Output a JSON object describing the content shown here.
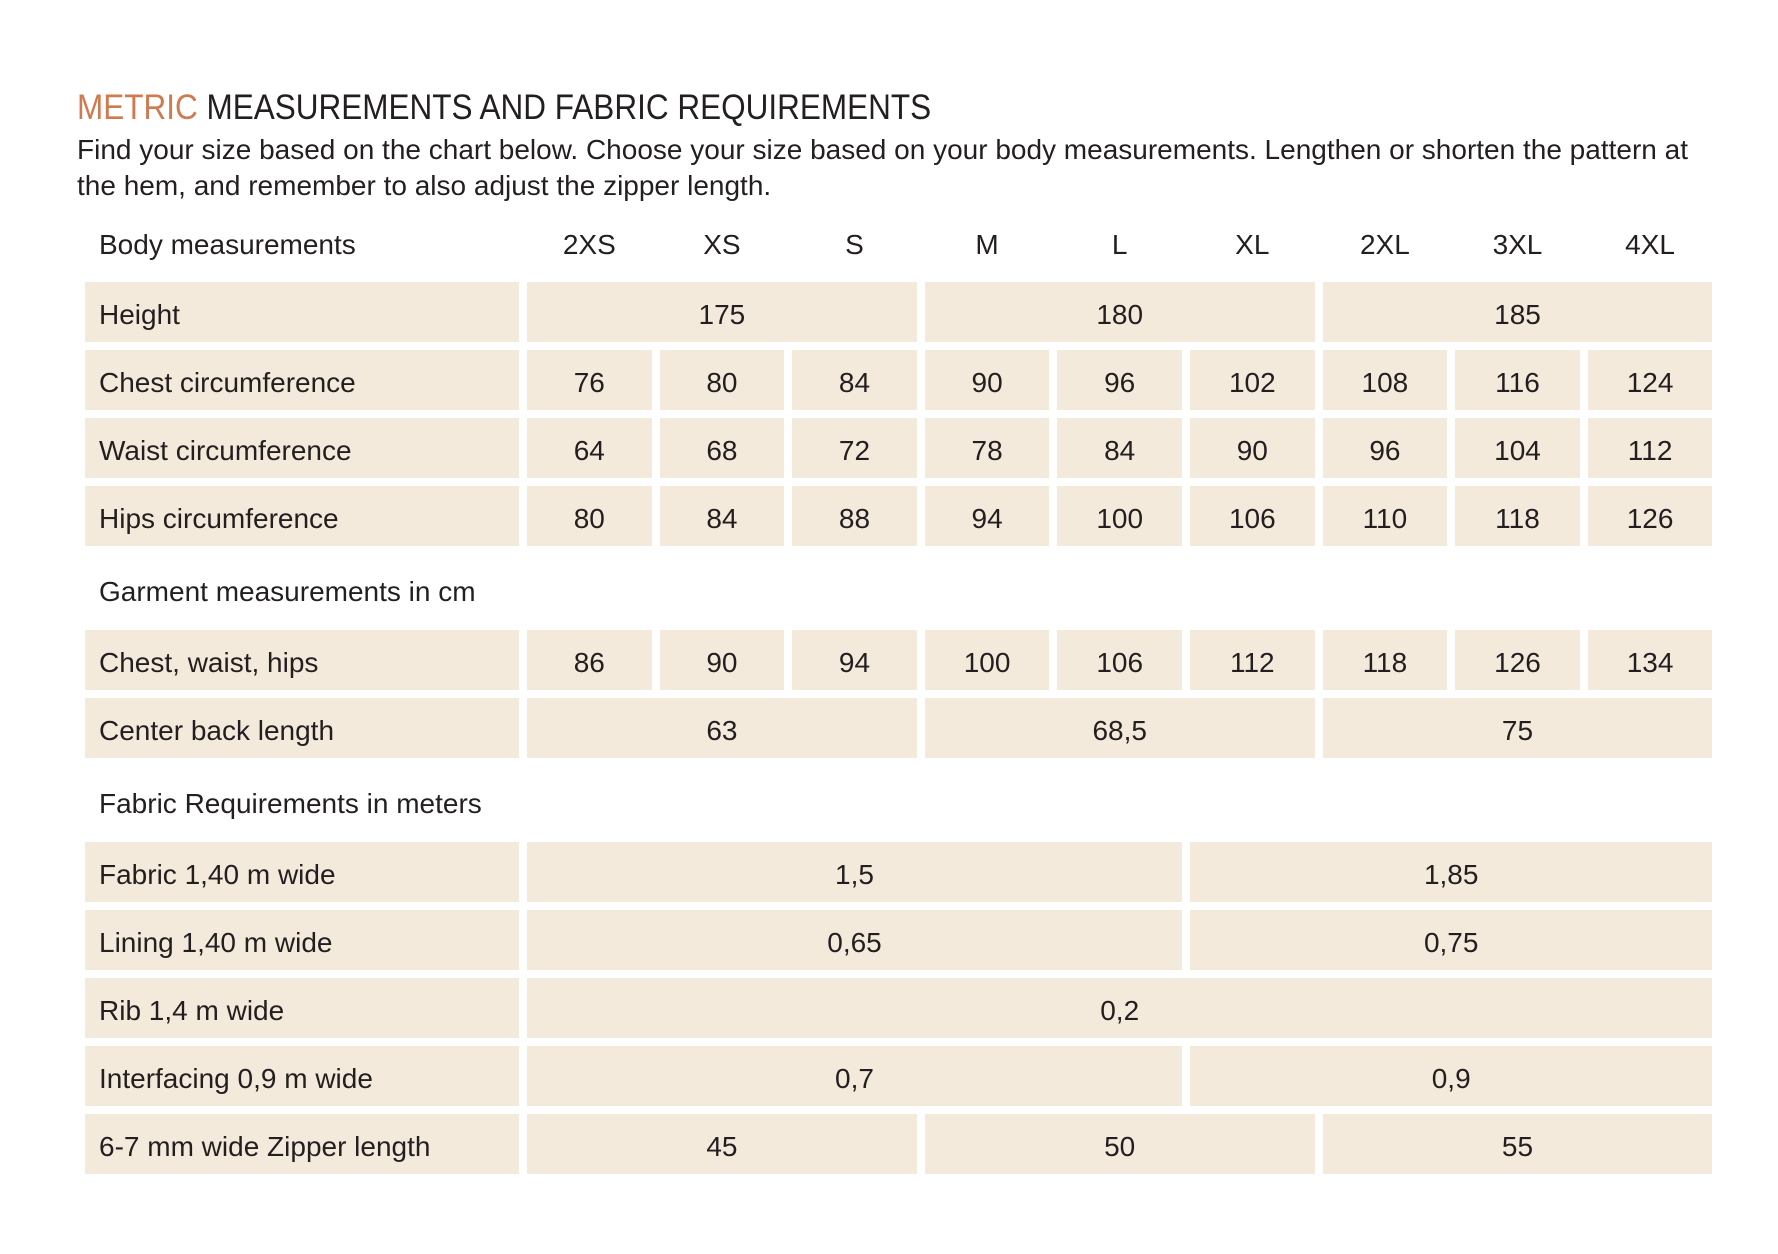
{
  "title": {
    "accent": "METRIC",
    "rest": " MEASUREMENTS AND FABRIC REQUIREMENTS"
  },
  "intro": "Find your size based on the chart below. Choose your size based on your body measurements.  Lengthen or shorten the pattern at the hem, and remember to also adjust the zipper length.",
  "sizes": [
    "2XS",
    "XS",
    "S",
    "M",
    "L",
    "XL",
    "2XL",
    "3XL",
    "4XL"
  ],
  "sections": [
    {
      "heading": "Body measurements",
      "header_row": true,
      "rows": [
        {
          "label": "Height",
          "cells": [
            {
              "value": "175",
              "span": 3
            },
            {
              "value": "180",
              "span": 3
            },
            {
              "value": "185",
              "span": 3
            }
          ]
        },
        {
          "label": "Chest circumference",
          "cells": [
            {
              "value": "76",
              "span": 1
            },
            {
              "value": "80",
              "span": 1
            },
            {
              "value": "84",
              "span": 1
            },
            {
              "value": "90",
              "span": 1
            },
            {
              "value": "96",
              "span": 1
            },
            {
              "value": "102",
              "span": 1
            },
            {
              "value": "108",
              "span": 1
            },
            {
              "value": "116",
              "span": 1
            },
            {
              "value": "124",
              "span": 1
            }
          ]
        },
        {
          "label": "Waist circumference",
          "cells": [
            {
              "value": "64",
              "span": 1
            },
            {
              "value": "68",
              "span": 1
            },
            {
              "value": "72",
              "span": 1
            },
            {
              "value": "78",
              "span": 1
            },
            {
              "value": "84",
              "span": 1
            },
            {
              "value": "90",
              "span": 1
            },
            {
              "value": "96",
              "span": 1
            },
            {
              "value": "104",
              "span": 1
            },
            {
              "value": "112",
              "span": 1
            }
          ]
        },
        {
          "label": "Hips circumference",
          "cells": [
            {
              "value": "80",
              "span": 1
            },
            {
              "value": "84",
              "span": 1
            },
            {
              "value": "88",
              "span": 1
            },
            {
              "value": "94",
              "span": 1
            },
            {
              "value": "100",
              "span": 1
            },
            {
              "value": "106",
              "span": 1
            },
            {
              "value": "110",
              "span": 1
            },
            {
              "value": "118",
              "span": 1
            },
            {
              "value": "126",
              "span": 1
            }
          ]
        }
      ]
    },
    {
      "heading": "Garment measurements in cm",
      "header_row": false,
      "rows": [
        {
          "label": "Chest, waist, hips",
          "cells": [
            {
              "value": "86",
              "span": 1
            },
            {
              "value": "90",
              "span": 1
            },
            {
              "value": "94",
              "span": 1
            },
            {
              "value": "100",
              "span": 1
            },
            {
              "value": "106",
              "span": 1
            },
            {
              "value": "112",
              "span": 1
            },
            {
              "value": "118",
              "span": 1
            },
            {
              "value": "126",
              "span": 1
            },
            {
              "value": "134",
              "span": 1
            }
          ]
        },
        {
          "label": "Center back length",
          "cells": [
            {
              "value": "63",
              "span": 3
            },
            {
              "value": "68,5",
              "span": 3
            },
            {
              "value": "75",
              "span": 3
            }
          ]
        }
      ]
    },
    {
      "heading": "Fabric Requirements in meters",
      "header_row": false,
      "rows": [
        {
          "label": "Fabric 1,40 m wide",
          "cells": [
            {
              "value": "1,5",
              "span": 5
            },
            {
              "value": "1,85",
              "span": 4
            }
          ]
        },
        {
          "label": "Lining 1,40 m wide",
          "cells": [
            {
              "value": "0,65",
              "span": 5
            },
            {
              "value": "0,75",
              "span": 4
            }
          ]
        },
        {
          "label": "Rib 1,4 m wide",
          "cells": [
            {
              "value": "0,2",
              "span": 9
            }
          ]
        },
        {
          "label": "Interfacing 0,9 m wide",
          "cells": [
            {
              "value": "0,7",
              "span": 5
            },
            {
              "value": "0,9",
              "span": 4
            }
          ]
        },
        {
          "label": "6-7 mm wide Zipper length",
          "cells": [
            {
              "value": "45",
              "span": 3
            },
            {
              "value": "50",
              "span": 3
            },
            {
              "value": "55",
              "span": 3
            }
          ]
        }
      ]
    }
  ]
}
